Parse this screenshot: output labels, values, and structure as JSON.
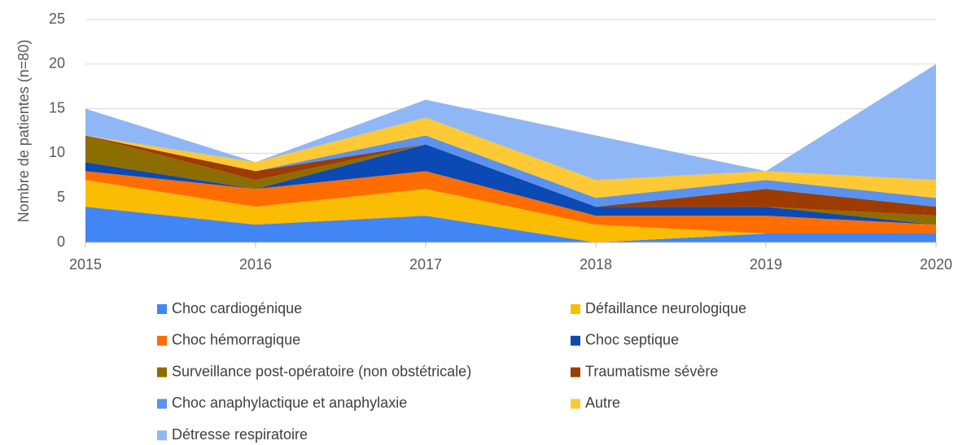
{
  "chart_data": {
    "type": "stacked-area",
    "y_label": "Nombre de patientes (n=80)",
    "x": [
      2015,
      2016,
      2017,
      2018,
      2019,
      2020
    ],
    "xlim": [
      2015,
      2020
    ],
    "xticks": [
      2015,
      2016,
      2017,
      2018,
      2019,
      2020
    ],
    "ylim": [
      0,
      25
    ],
    "yticks": [
      0,
      5,
      10,
      15,
      20,
      25
    ],
    "grid": true,
    "series": [
      {
        "name": "Choc cardiogénique",
        "color": "#4285f4",
        "values": [
          4,
          2,
          3,
          0,
          1,
          1
        ]
      },
      {
        "name": "Défaillance neurologique",
        "color": "#fbbc04",
        "values": [
          3,
          2,
          3,
          2,
          0,
          0
        ]
      },
      {
        "name": "Choc hémorragique",
        "color": "#ff6d01",
        "values": [
          1,
          2,
          2,
          1,
          2,
          1
        ]
      },
      {
        "name": "Choc septique",
        "color": "#0b49b5",
        "values": [
          1,
          0,
          3,
          1,
          1,
          0
        ]
      },
      {
        "name": "Surveillance post-opératoire (non obstétricale)",
        "color": "#8c6d00",
        "values": [
          3,
          1,
          0,
          0,
          0,
          1
        ]
      },
      {
        "name": "Traumatisme sévère",
        "color": "#9e3b00",
        "values": [
          0,
          1,
          0,
          0,
          2,
          1
        ]
      },
      {
        "name": "Choc anaphylactique et anaphylaxie",
        "color": "#5a92ee",
        "values": [
          0,
          0,
          1,
          1,
          1,
          1
        ]
      },
      {
        "name": "Autre",
        "color": "#ffc935",
        "values": [
          0,
          1,
          2,
          2,
          1,
          2
        ]
      },
      {
        "name": "Détresse respiratoire",
        "color": "#90b7f5",
        "values": [
          3,
          0,
          2,
          5,
          0,
          13
        ]
      }
    ]
  }
}
